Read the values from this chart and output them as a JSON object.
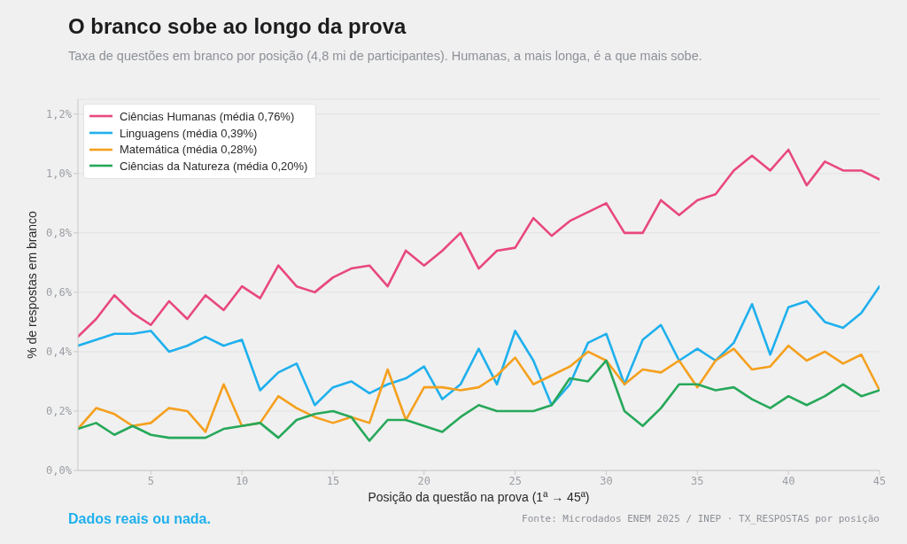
{
  "chart_data": {
    "type": "line",
    "title": "O branco sobe ao longo da prova",
    "subtitle": "Taxa de questões em branco por posição (4,8 mi de participantes). Humanas, a mais longa, é a que mais sobe.",
    "xlabel": "Posição da questão na prova (1ª → 45ª)",
    "ylabel": "% de respostas em branco",
    "annotations": [
      "Dados reais ou nada.",
      "Fonte: Microdados ENEM 2025 / INEP · TX_RESPOSTAS por posição"
    ],
    "x": [
      1,
      2,
      3,
      4,
      5,
      6,
      7,
      8,
      9,
      10,
      11,
      12,
      13,
      14,
      15,
      16,
      17,
      18,
      19,
      20,
      21,
      22,
      23,
      24,
      25,
      26,
      27,
      28,
      29,
      30,
      31,
      32,
      33,
      34,
      35,
      36,
      37,
      38,
      39,
      40,
      41,
      42,
      43,
      44,
      45
    ],
    "series": [
      {
        "name": "Ciências Humanas (média 0,76%)",
        "color": "#e8487e",
        "values": [
          0.45,
          0.51,
          0.59,
          0.53,
          0.49,
          0.57,
          0.51,
          0.59,
          0.54,
          0.62,
          0.58,
          0.69,
          0.62,
          0.6,
          0.65,
          0.68,
          0.69,
          0.62,
          0.74,
          0.69,
          0.74,
          0.8,
          0.68,
          0.74,
          0.75,
          0.85,
          0.79,
          0.84,
          0.87,
          0.9,
          0.8,
          0.8,
          0.91,
          0.86,
          0.91,
          0.93,
          1.01,
          1.06,
          1.01,
          1.08,
          0.96,
          1.04,
          1.01,
          1.01,
          0.98
        ]
      },
      {
        "name": "Linguagens (média 0,39%)",
        "color": "#1fb0ed",
        "values": [
          0.42,
          0.44,
          0.46,
          0.46,
          0.47,
          0.4,
          0.42,
          0.45,
          0.42,
          0.44,
          0.27,
          0.33,
          0.36,
          0.22,
          0.28,
          0.3,
          0.26,
          0.29,
          0.31,
          0.35,
          0.24,
          0.29,
          0.41,
          0.29,
          0.47,
          0.37,
          0.22,
          0.29,
          0.43,
          0.46,
          0.29,
          0.44,
          0.49,
          0.37,
          0.41,
          0.37,
          0.43,
          0.56,
          0.39,
          0.55,
          0.57,
          0.5,
          0.48,
          0.53,
          0.62
        ]
      },
      {
        "name": "Matemática (média 0,28%)",
        "color": "#f5a01e",
        "values": [
          0.14,
          0.21,
          0.19,
          0.15,
          0.16,
          0.21,
          0.2,
          0.13,
          0.29,
          0.15,
          0.16,
          0.25,
          0.21,
          0.18,
          0.16,
          0.18,
          0.16,
          0.34,
          0.17,
          0.28,
          0.28,
          0.27,
          0.28,
          0.32,
          0.38,
          0.29,
          0.32,
          0.35,
          0.4,
          0.37,
          0.29,
          0.34,
          0.33,
          0.37,
          0.28,
          0.37,
          0.41,
          0.34,
          0.35,
          0.42,
          0.37,
          0.4,
          0.36,
          0.39,
          0.27
        ]
      },
      {
        "name": "Ciências da Natureza (média 0,20%)",
        "color": "#27a85a",
        "values": [
          0.14,
          0.16,
          0.12,
          0.15,
          0.12,
          0.11,
          0.11,
          0.11,
          0.14,
          0.15,
          0.16,
          0.11,
          0.17,
          0.19,
          0.2,
          0.18,
          0.1,
          0.17,
          0.17,
          0.15,
          0.13,
          0.18,
          0.22,
          0.2,
          0.2,
          0.2,
          0.22,
          0.31,
          0.3,
          0.37,
          0.2,
          0.15,
          0.21,
          0.29,
          0.29,
          0.27,
          0.28,
          0.24,
          0.21,
          0.25,
          0.22,
          0.25,
          0.29,
          0.25,
          0.27
        ]
      }
    ],
    "xlim": [
      1,
      45
    ],
    "xticks": [
      5,
      10,
      15,
      20,
      25,
      30,
      35,
      40,
      45
    ],
    "ylim": [
      0,
      1.25
    ],
    "yticks": [
      {
        "value": 0,
        "label": "0,0%"
      },
      {
        "value": 0.2,
        "label": "0,2%"
      },
      {
        "value": 0.4,
        "label": "0,4%"
      },
      {
        "value": 0.6,
        "label": "0,6%"
      },
      {
        "value": 0.8,
        "label": "0,8%"
      },
      {
        "value": 1.0,
        "label": "1,0%"
      },
      {
        "value": 1.2,
        "label": "1,2%"
      }
    ],
    "grid": "y",
    "legend": "top left",
    "line_style": "solid"
  }
}
